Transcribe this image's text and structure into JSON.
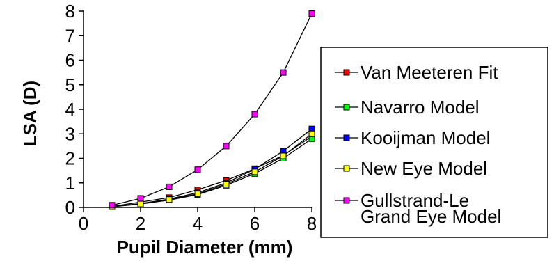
{
  "chart_data": {
    "type": "line",
    "title": "",
    "xlabel": "Pupil Diameter (mm)",
    "ylabel": "LSA (D)",
    "xlim": [
      0,
      8
    ],
    "ylim": [
      0,
      8
    ],
    "xticks": [
      "0",
      "2",
      "4",
      "6",
      "8"
    ],
    "yticks": [
      "0",
      "1",
      "2",
      "3",
      "4",
      "5",
      "6",
      "7",
      "8"
    ],
    "grid": false,
    "legend_position": "right",
    "x": [
      1,
      2,
      3,
      4,
      5,
      6,
      7,
      8
    ],
    "series": [
      {
        "name": "Van Meeteren Fit",
        "color": "#ff0000",
        "values": [
          0.04,
          0.22,
          0.4,
          0.72,
          1.1,
          1.58,
          2.12,
          2.9
        ]
      },
      {
        "name": "Navarro Model",
        "color": "#00ff00",
        "values": [
          0.03,
          0.14,
          0.3,
          0.52,
          0.9,
          1.38,
          2.0,
          2.8
        ]
      },
      {
        "name": "Kooijman Model",
        "color": "#0000ff",
        "values": [
          0.03,
          0.16,
          0.34,
          0.6,
          1.0,
          1.56,
          2.3,
          3.2
        ]
      },
      {
        "name": "New Eye Model",
        "color": "#ffff00",
        "values": [
          0.03,
          0.14,
          0.32,
          0.55,
          0.95,
          1.45,
          2.1,
          3.0
        ]
      },
      {
        "name": "Gullstrand-Le Grand Eye Model",
        "label_lines": [
          "Gullstrand-Le",
          "Grand Eye Model"
        ],
        "color": "#ff00ff",
        "values": [
          0.09,
          0.37,
          0.84,
          1.54,
          2.5,
          3.8,
          5.5,
          7.9
        ]
      }
    ]
  }
}
